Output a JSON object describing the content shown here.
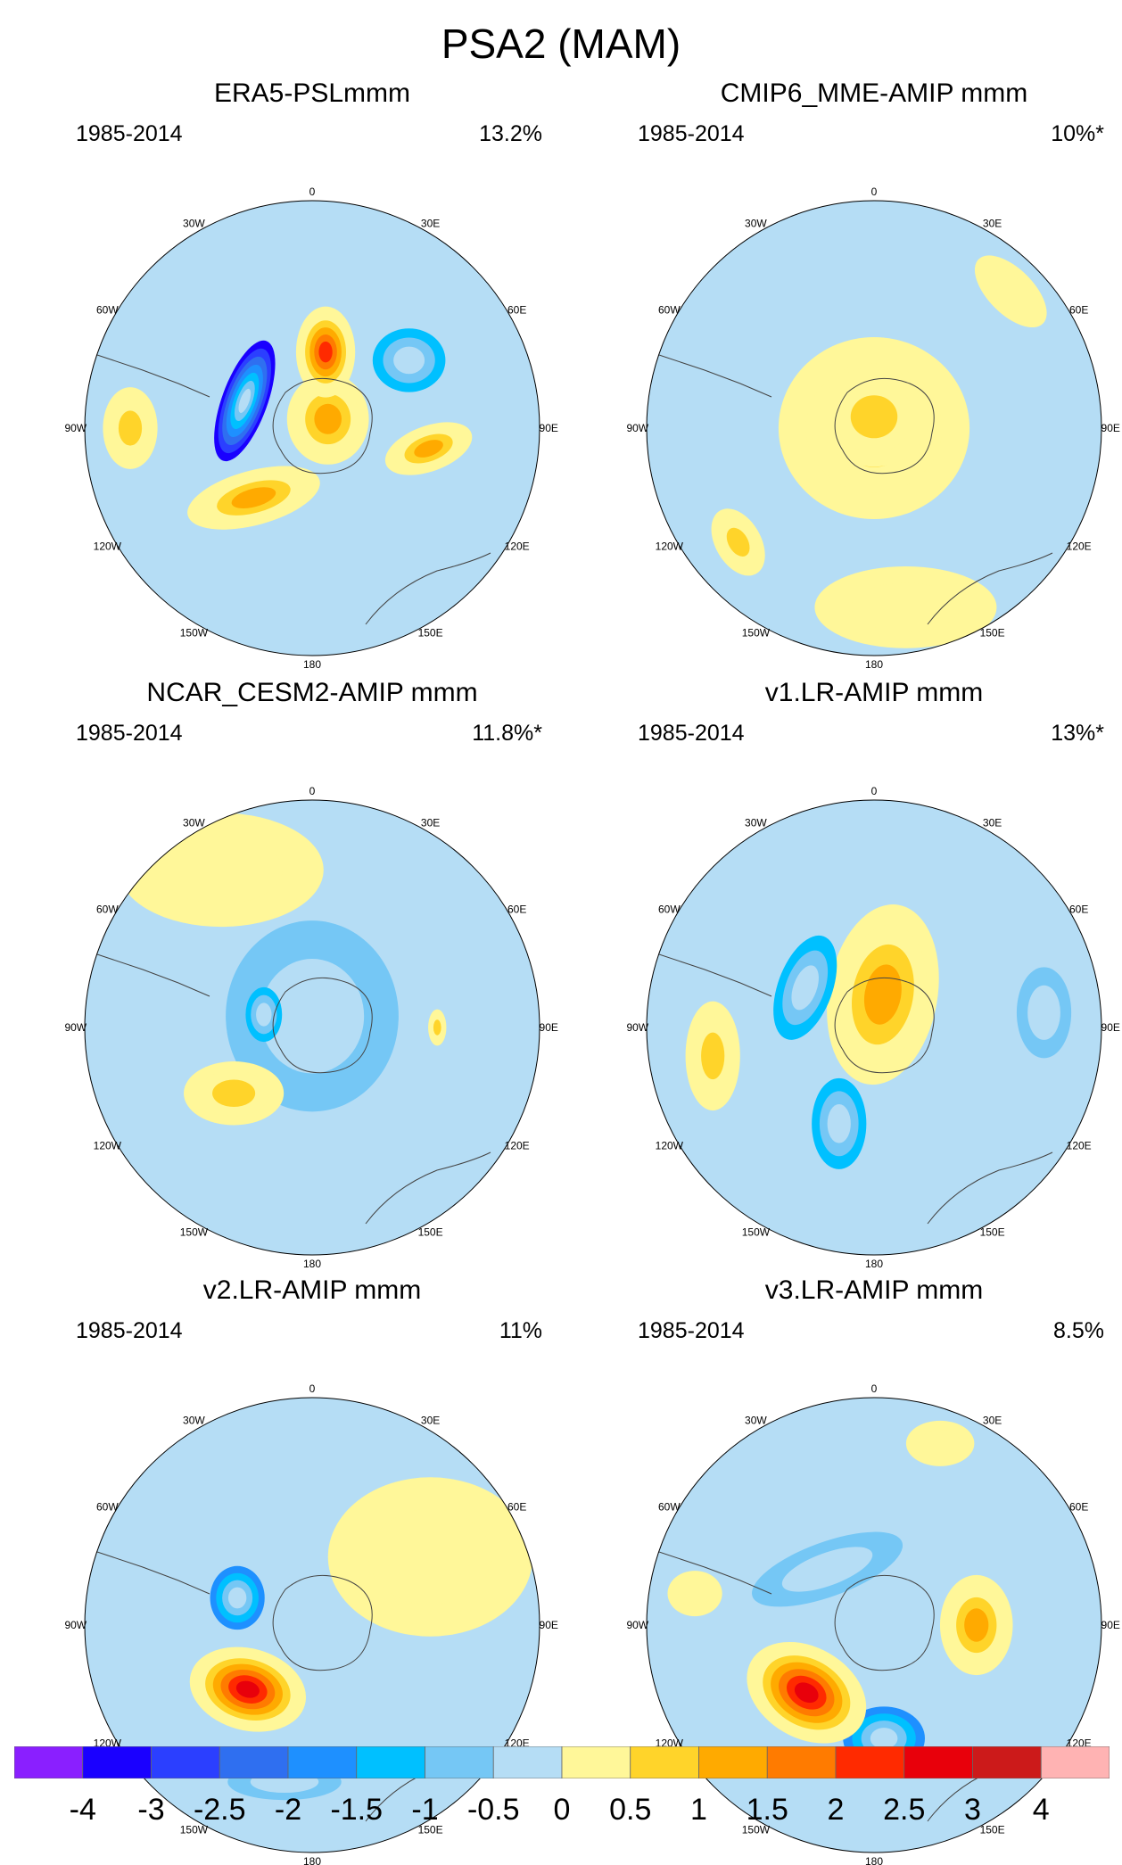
{
  "title": "PSA2 (MAM)",
  "chart_data": {
    "type": "polar-stereographic contour maps (sea level pressure EOF pattern)",
    "common_period": "1985-2014",
    "longitude_labels": [
      "0",
      "30E",
      "60E",
      "90E",
      "120E",
      "150E",
      "180",
      "150W",
      "120W",
      "90W",
      "60W",
      "30W"
    ],
    "panels": [
      {
        "title": "ERA5-PSLmmm",
        "period": "1985-2014",
        "variance_explained": "13.2%",
        "features": [
          {
            "lon": -68,
            "r": 0.32,
            "value": -4.0,
            "rx": 0.1,
            "ry": 0.28,
            "rot": 20
          },
          {
            "lon": 10,
            "r": 0.34,
            "value": 2.5,
            "rx": 0.13,
            "ry": 0.2,
            "rot": 0
          },
          {
            "lon": 55,
            "r": 0.52,
            "value": -1.5,
            "rx": 0.16,
            "ry": 0.14,
            "rot": 0
          },
          {
            "lon": -140,
            "r": 0.4,
            "value": 1.5,
            "rx": 0.3,
            "ry": 0.12,
            "rot": -15
          },
          {
            "lon": 100,
            "r": 0.52,
            "value": 1.5,
            "rx": 0.2,
            "ry": 0.1,
            "rot": -20
          },
          {
            "lon": -90,
            "r": 0.8,
            "value": 0.8,
            "rx": 0.12,
            "ry": 0.18,
            "rot": 0
          },
          {
            "lon": 60,
            "r": 0.08,
            "value": 1.2,
            "rx": 0.18,
            "ry": 0.2,
            "rot": 0
          }
        ]
      },
      {
        "title": "CMIP6_MME-AMIP  mmm",
        "period": "1985-2014",
        "variance_explained": "10%*",
        "features": [
          {
            "lon": 0,
            "r": 0.0,
            "value": 0.8,
            "rx": 0.42,
            "ry": 0.4,
            "rot": 0
          },
          {
            "lon": 0,
            "r": 0.05,
            "value": 1.0,
            "rx": 0.24,
            "ry": 0.22,
            "rot": 0
          },
          {
            "lon": -130,
            "r": 0.78,
            "value": 0.6,
            "rx": 0.1,
            "ry": 0.16,
            "rot": -30
          },
          {
            "lon": 170,
            "r": 0.8,
            "value": 0.4,
            "rx": 0.4,
            "ry": 0.18,
            "rot": 0
          },
          {
            "lon": 45,
            "r": 0.85,
            "value": 0.4,
            "rx": 0.2,
            "ry": 0.1,
            "rot": 45
          }
        ]
      },
      {
        "title": "NCAR_CESM2-AMIP  mmm",
        "period": "1985-2014",
        "variance_explained": "11.8%*",
        "features": [
          {
            "lon": 0,
            "r": 0.05,
            "value": -0.8,
            "rx": 0.38,
            "ry": 0.42,
            "rot": 0
          },
          {
            "lon": -75,
            "r": 0.22,
            "value": -1.2,
            "rx": 0.08,
            "ry": 0.12,
            "rot": 0
          },
          {
            "lon": -130,
            "r": 0.45,
            "value": 0.8,
            "rx": 0.22,
            "ry": 0.14,
            "rot": 0
          },
          {
            "lon": -30,
            "r": 0.8,
            "value": 0.4,
            "rx": 0.45,
            "ry": 0.25,
            "rot": 0
          },
          {
            "lon": 90,
            "r": 0.55,
            "value": 0.6,
            "rx": 0.04,
            "ry": 0.08,
            "rot": 0
          }
        ]
      },
      {
        "title": "v1.LR-AMIP  mmm",
        "period": "1985-2014",
        "variance_explained": "13%*",
        "features": [
          {
            "lon": 15,
            "r": 0.15,
            "value": 1.5,
            "rx": 0.24,
            "ry": 0.4,
            "rot": 10
          },
          {
            "lon": -60,
            "r": 0.35,
            "value": -1.5,
            "rx": 0.12,
            "ry": 0.24,
            "rot": 20
          },
          {
            "lon": -160,
            "r": 0.45,
            "value": -1.5,
            "rx": 0.12,
            "ry": 0.2,
            "rot": 0
          },
          {
            "lon": -100,
            "r": 0.72,
            "value": 0.8,
            "rx": 0.12,
            "ry": 0.24,
            "rot": 0
          },
          {
            "lon": 85,
            "r": 0.75,
            "value": -0.8,
            "rx": 0.12,
            "ry": 0.2,
            "rot": 0
          }
        ]
      },
      {
        "title": "v2.LR-AMIP  mmm",
        "period": "1985-2014",
        "variance_explained": "11%",
        "features": [
          {
            "lon": -135,
            "r": 0.4,
            "value": 3.0,
            "rx": 0.26,
            "ry": 0.18,
            "rot": 15
          },
          {
            "lon": -70,
            "r": 0.35,
            "value": -2.0,
            "rx": 0.12,
            "ry": 0.14,
            "rot": 0
          },
          {
            "lon": 60,
            "r": 0.6,
            "value": 0.4,
            "rx": 0.45,
            "ry": 0.35,
            "rot": 0
          },
          {
            "lon": -170,
            "r": 0.7,
            "value": -0.8,
            "rx": 0.25,
            "ry": 0.08,
            "rot": 0
          }
        ]
      },
      {
        "title": "v3.LR-AMIP  mmm",
        "period": "1985-2014",
        "variance_explained": "8.5%",
        "features": [
          {
            "lon": -135,
            "r": 0.42,
            "value": 3.0,
            "rx": 0.28,
            "ry": 0.2,
            "rot": 30
          },
          {
            "lon": 175,
            "r": 0.5,
            "value": -2.0,
            "rx": 0.18,
            "ry": 0.14,
            "rot": 0
          },
          {
            "lon": -40,
            "r": 0.32,
            "value": -1.0,
            "rx": 0.35,
            "ry": 0.12,
            "rot": -20
          },
          {
            "lon": 90,
            "r": 0.45,
            "value": 1.5,
            "rx": 0.16,
            "ry": 0.22,
            "rot": 0
          },
          {
            "lon": 20,
            "r": 0.85,
            "value": 0.4,
            "rx": 0.15,
            "ry": 0.1,
            "rot": 0
          },
          {
            "lon": -80,
            "r": 0.8,
            "value": 0.4,
            "rx": 0.12,
            "ry": 0.1,
            "rot": 0
          }
        ]
      }
    ],
    "colorbar": {
      "levels": [
        "-4",
        "-3",
        "-2.5",
        "-2",
        "-1.5",
        "-1",
        "-0.5",
        "0",
        "0.5",
        "1",
        "1.5",
        "2",
        "2.5",
        "3",
        "4"
      ],
      "colors": [
        "#8a1fff",
        "#1a00ff",
        "#2b3fff",
        "#2f6ff0",
        "#1e90ff",
        "#00c0ff",
        "#75c7f5",
        "#b5ddf5",
        "#fff799",
        "#ffd42a",
        "#ffaa00",
        "#ff7b00",
        "#ff2a00",
        "#e8000b",
        "#cc1a1a",
        "#ffb3b3"
      ]
    }
  }
}
